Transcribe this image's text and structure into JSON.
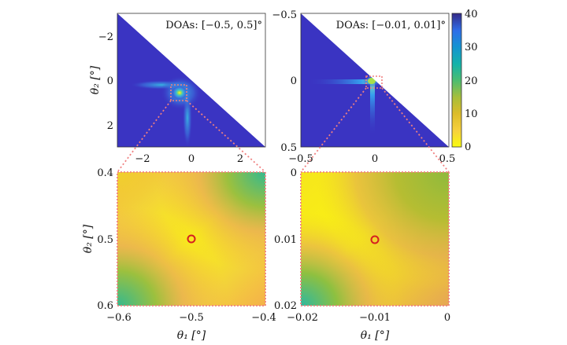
{
  "chart_data": [
    {
      "id": "tl",
      "type": "heatmap",
      "annotation": "DOAs: [−0.5, 0.5]°",
      "xticks": [
        "−2",
        "0",
        "2"
      ],
      "yticks": [
        "−2",
        "0",
        "2"
      ],
      "ylabel": "θ₂ [°]",
      "xlim": [
        -3,
        3
      ],
      "ylim": [
        -3,
        3
      ],
      "zoom_box": [
        [
          -0.6,
          -0.4
        ],
        [
          0.4,
          0.6
        ]
      ]
    },
    {
      "id": "tr",
      "type": "heatmap",
      "annotation": "DOAs: [−0.01, 0.01]°",
      "xticks": [
        "−0.5",
        "0",
        "0.5"
      ],
      "yticks": [
        "−0.5",
        "0",
        "0.5"
      ],
      "xlim": [
        -0.5,
        0.5
      ],
      "ylim": [
        -0.5,
        0.5
      ],
      "zoom_box": [
        [
          -0.02,
          0
        ],
        [
          0,
          0.02
        ]
      ]
    },
    {
      "id": "bl",
      "type": "heatmap",
      "xticks": [
        "−0.6",
        "−0.5",
        "−0.4"
      ],
      "yticks": [
        "0.4",
        "0.5",
        "0.6"
      ],
      "xlabel": "θ₁ [°]",
      "ylabel": "θ₂ [°]",
      "xlim": [
        -0.6,
        -0.4
      ],
      "ylim": [
        0.4,
        0.6
      ],
      "marker": [
        -0.5,
        0.5
      ]
    },
    {
      "id": "br",
      "type": "heatmap",
      "xticks": [
        "−0.02",
        "−0.01",
        "0"
      ],
      "yticks": [
        "0",
        "0.01",
        "0.02"
      ],
      "xlabel": "θ₁ [°]",
      "xlim": [
        -0.02,
        0
      ],
      "ylim": [
        0,
        0.02
      ],
      "marker": [
        -0.01,
        0.01
      ]
    }
  ],
  "colorbar": {
    "ticks": [
      "40",
      "30",
      "20",
      "10",
      "0"
    ],
    "range": [
      0,
      40
    ]
  },
  "colors": {
    "zoom": "#f08080",
    "marker": "#d62020",
    "triangle": "#3a34c2"
  }
}
